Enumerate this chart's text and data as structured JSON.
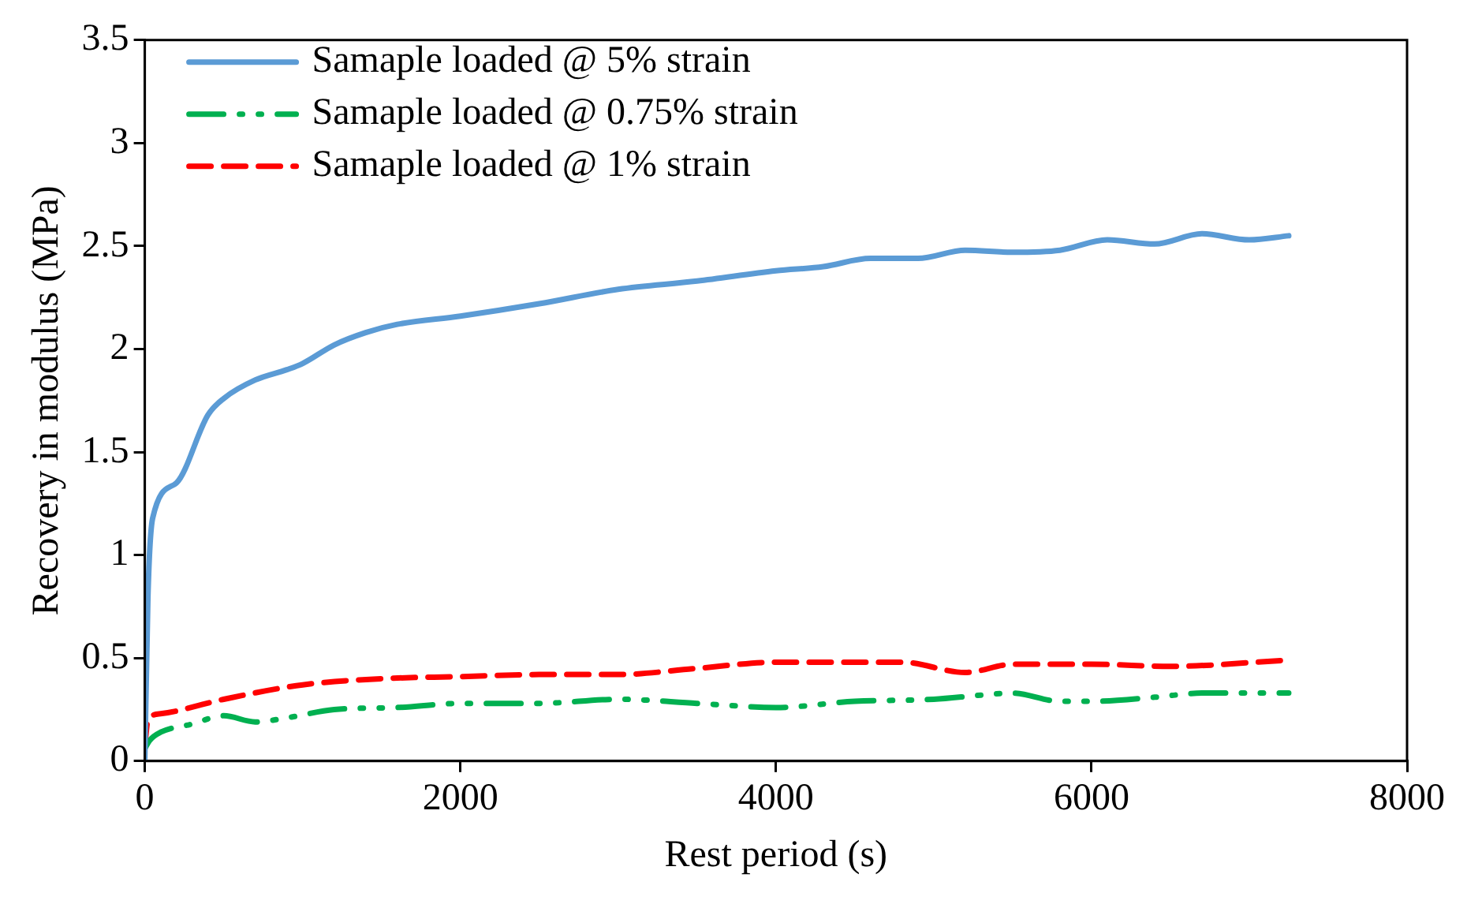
{
  "chart_data": {
    "type": "line",
    "xlabel": "Rest period (s)",
    "ylabel": "Recovery in modulus (MPa)",
    "xlim": [
      0,
      8000
    ],
    "xticks": [
      0,
      2000,
      4000,
      6000,
      8000
    ],
    "ylim": [
      0,
      3.5
    ],
    "yticks": [
      0,
      0.5,
      1,
      1.5,
      2,
      2.5,
      3,
      3.5
    ],
    "grid": false,
    "legend": "top left",
    "marker": "none",
    "series": [
      {
        "name": "Samaple loaded @ 5% strain",
        "color": "#5b9bd5",
        "line_style": "solid",
        "x": [
          0,
          20,
          50,
          200,
          400,
          500,
          700,
          900,
          1000,
          1200,
          1400,
          1600,
          2000,
          2500,
          3000,
          3500,
          4000,
          4300,
          4600,
          4900,
          5200,
          5500,
          5800,
          6100,
          6400,
          6700,
          7000,
          7250
        ],
        "values": [
          0,
          0.8,
          1.18,
          1.35,
          1.68,
          1.76,
          1.85,
          1.9,
          1.93,
          2.02,
          2.08,
          2.12,
          2.16,
          2.22,
          2.29,
          2.33,
          2.38,
          2.4,
          2.44,
          2.44,
          2.48,
          2.47,
          2.48,
          2.53,
          2.51,
          2.56,
          2.53,
          2.55
        ]
      },
      {
        "name": "Samaple loaded @ 0.75% strain",
        "color": "#00b050",
        "line_style": "dashdot",
        "x": [
          0,
          30,
          100,
          300,
          500,
          700,
          900,
          1200,
          1600,
          2000,
          2500,
          3000,
          3500,
          4000,
          4500,
          5000,
          5300,
          5500,
          5800,
          6000,
          6400,
          6700,
          7250
        ],
        "values": [
          0.06,
          0.1,
          0.14,
          0.18,
          0.22,
          0.19,
          0.21,
          0.25,
          0.26,
          0.28,
          0.28,
          0.3,
          0.28,
          0.26,
          0.29,
          0.3,
          0.32,
          0.33,
          0.29,
          0.29,
          0.31,
          0.33,
          0.33
        ]
      },
      {
        "name": "Samaple loaded @ 1% strain",
        "color": "#ff0000",
        "line_style": "dashed",
        "x": [
          0,
          20,
          100,
          500,
          1000,
          1500,
          2000,
          2500,
          3000,
          3500,
          4000,
          4500,
          4800,
          5200,
          5500,
          6000,
          6500,
          7250
        ],
        "values": [
          0.07,
          0.2,
          0.23,
          0.3,
          0.37,
          0.4,
          0.41,
          0.42,
          0.42,
          0.45,
          0.48,
          0.48,
          0.48,
          0.43,
          0.47,
          0.47,
          0.46,
          0.49
        ]
      }
    ]
  }
}
